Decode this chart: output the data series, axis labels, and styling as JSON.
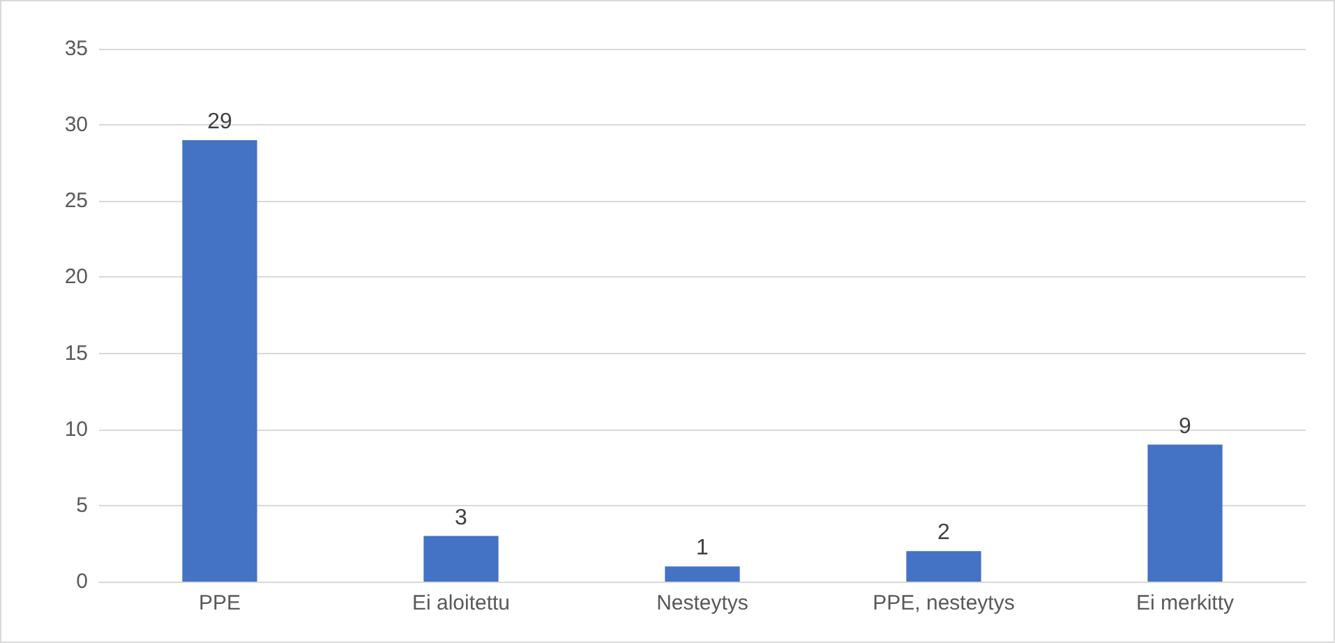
{
  "chart_data": {
    "type": "bar",
    "categories": [
      "PPE",
      "Ei aloitettu",
      "Nesteytys",
      "PPE, nesteytys",
      "Ei merkitty"
    ],
    "values": [
      29,
      3,
      1,
      2,
      9
    ],
    "color": "#4472c4",
    "ylim": [
      0,
      35
    ],
    "yticks": [
      0,
      5,
      10,
      15,
      20,
      25,
      30,
      35
    ],
    "grid": "y",
    "data_labels": true
  }
}
